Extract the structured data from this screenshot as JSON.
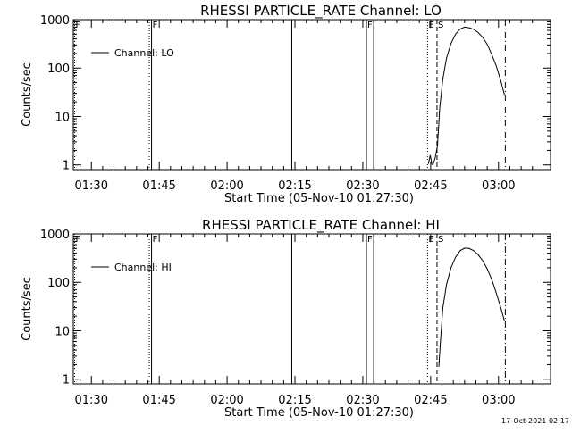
{
  "footer_timestamp": "17-Oct-2021 02:17",
  "chart_data": [
    {
      "type": "line",
      "title": "RHESSI PARTICLE_RATE Channel: LO",
      "xlabel": "Start Time (05-Nov-10 01:27:30)",
      "ylabel": "Counts/sec",
      "yscale": "log",
      "ylim": [
        0.8,
        1000
      ],
      "xlim_minutes": [
        -1.5,
        104
      ],
      "x_ticks": [
        {
          "t": 2.5,
          "label": "01:30"
        },
        {
          "t": 17.5,
          "label": "01:45"
        },
        {
          "t": 32.5,
          "label": "02:00"
        },
        {
          "t": 47.5,
          "label": "02:15"
        },
        {
          "t": 62.5,
          "label": "02:30"
        },
        {
          "t": 77.5,
          "label": "02:45"
        },
        {
          "t": 92.5,
          "label": "03:00"
        }
      ],
      "y_ticks": [
        {
          "v": 1,
          "label": "1"
        },
        {
          "v": 10,
          "label": "10"
        },
        {
          "v": 100,
          "label": "100"
        },
        {
          "v": 1000,
          "label": "1000"
        }
      ],
      "legend": {
        "label": "Channel: LO",
        "position": "top-left"
      },
      "markers": [
        {
          "t": -1.2,
          "style": "dotted",
          "label": "F"
        },
        {
          "t": 15.3,
          "style": "dotted",
          "label": ""
        },
        {
          "t": 15.8,
          "style": "solid",
          "label": "F"
        },
        {
          "t": 46.8,
          "style": "solid",
          "label": ""
        },
        {
          "t": 63.3,
          "style": "solid",
          "label": "F"
        },
        {
          "t": 64.9,
          "style": "solid",
          "label": ""
        },
        {
          "t": 76.8,
          "style": "dotted",
          "label": "E"
        },
        {
          "t": 78.9,
          "style": "dashed",
          "label": "S"
        },
        {
          "t": 94.0,
          "style": "dashdot",
          "label": ""
        }
      ],
      "series": [
        {
          "name": "Channel: LO",
          "segments": [
            [
              [
                77.0,
                1.05
              ],
              [
                77.4,
                1.6
              ],
              [
                77.8,
                1.0
              ]
            ],
            [
              [
                78.0,
                1.0
              ],
              [
                78.5,
                1.4
              ],
              [
                79.0,
                2.5
              ],
              [
                79.5,
                15
              ],
              [
                80.2,
                60
              ],
              [
                81.0,
                160
              ],
              [
                82.0,
                320
              ],
              [
                83.0,
                500
              ],
              [
                84.0,
                640
              ],
              [
                85.0,
                700
              ],
              [
                86.0,
                680
              ],
              [
                87.0,
                630
              ],
              [
                88.0,
                540
              ],
              [
                89.0,
                430
              ],
              [
                90.0,
                310
              ],
              [
                91.0,
                190
              ],
              [
                92.0,
                110
              ],
              [
                93.0,
                55
              ],
              [
                93.8,
                28
              ]
            ]
          ]
        }
      ]
    },
    {
      "type": "line",
      "title": "RHESSI PARTICLE_RATE Channel: HI",
      "xlabel": "Start Time (05-Nov-10 01:27:30)",
      "ylabel": "Counts/sec",
      "yscale": "log",
      "ylim": [
        0.8,
        1000
      ],
      "xlim_minutes": [
        -1.5,
        104
      ],
      "x_ticks": [
        {
          "t": 2.5,
          "label": "01:30"
        },
        {
          "t": 17.5,
          "label": "01:45"
        },
        {
          "t": 32.5,
          "label": "02:00"
        },
        {
          "t": 47.5,
          "label": "02:15"
        },
        {
          "t": 62.5,
          "label": "02:30"
        },
        {
          "t": 77.5,
          "label": "02:45"
        },
        {
          "t": 92.5,
          "label": "03:00"
        }
      ],
      "y_ticks": [
        {
          "v": 1,
          "label": "1"
        },
        {
          "v": 10,
          "label": "10"
        },
        {
          "v": 100,
          "label": "100"
        },
        {
          "v": 1000,
          "label": "1000"
        }
      ],
      "legend": {
        "label": "Channel: HI",
        "position": "top-left"
      },
      "markers": [
        {
          "t": -1.2,
          "style": "dotted",
          "label": "F"
        },
        {
          "t": 15.3,
          "style": "dotted",
          "label": ""
        },
        {
          "t": 15.8,
          "style": "solid",
          "label": "F"
        },
        {
          "t": 46.8,
          "style": "solid",
          "label": ""
        },
        {
          "t": 63.3,
          "style": "solid",
          "label": "F"
        },
        {
          "t": 64.9,
          "style": "solid",
          "label": ""
        },
        {
          "t": 76.8,
          "style": "dotted",
          "label": "E"
        },
        {
          "t": 78.9,
          "style": "dashed",
          "label": "S"
        },
        {
          "t": 94.0,
          "style": "dashdot",
          "label": ""
        }
      ],
      "series": [
        {
          "name": "Channel: HI",
          "segments": [
            [
              [
                79.3,
                1.8
              ],
              [
                79.6,
                5
              ],
              [
                80.2,
                30
              ],
              [
                81.0,
                90
              ],
              [
                82.0,
                200
              ],
              [
                83.0,
                330
              ],
              [
                84.0,
                450
              ],
              [
                85.0,
                510
              ],
              [
                86.0,
                500
              ],
              [
                87.0,
                450
              ],
              [
                88.0,
                370
              ],
              [
                89.0,
                280
              ],
              [
                90.0,
                190
              ],
              [
                91.0,
                115
              ],
              [
                92.0,
                60
              ],
              [
                93.0,
                30
              ],
              [
                93.8,
                16
              ]
            ]
          ]
        }
      ]
    }
  ]
}
